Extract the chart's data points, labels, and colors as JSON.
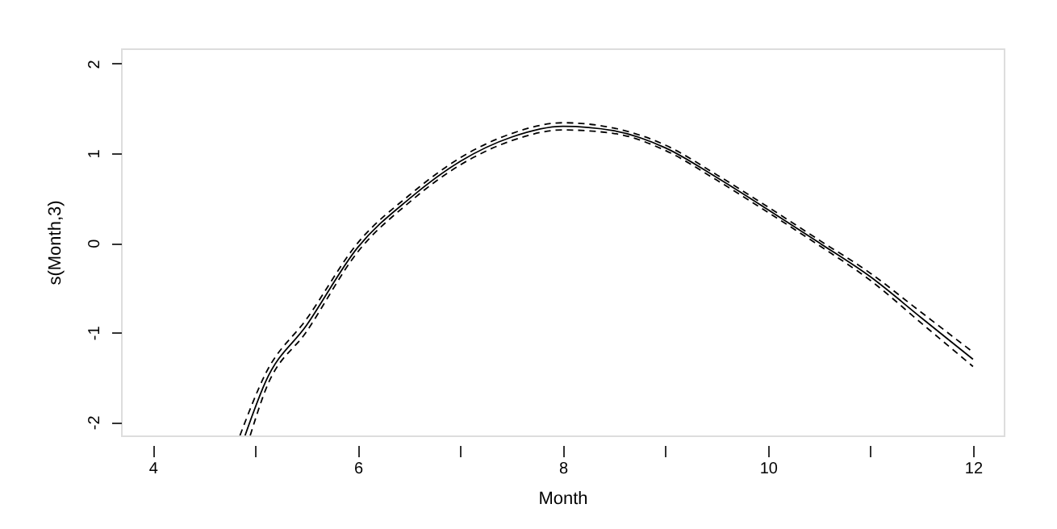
{
  "chart_data": {
    "type": "line",
    "xlabel": "Month",
    "ylabel": "s(Month,3)",
    "xlim": [
      3.69,
      12.3
    ],
    "ylim": [
      -2.15,
      2.17
    ],
    "xticks": [
      4,
      {
        "value": 5,
        "label": null
      },
      6,
      {
        "value": 7,
        "label": null
      },
      8,
      {
        "value": 9,
        "label": null
      },
      10,
      {
        "value": 11,
        "label": null
      },
      12
    ],
    "yticks": [
      -2,
      -1,
      0,
      1,
      2
    ],
    "grid": false,
    "marker": "none",
    "series": [
      {
        "color": "#000000",
        "line_style": "solid",
        "x": [
          4.9,
          5.1,
          5.5,
          6,
          6.5,
          7,
          7.5,
          8,
          8.5,
          9,
          9.5,
          10,
          10.5,
          11,
          11.5,
          12
        ],
        "values": [
          -2.15,
          -1.55,
          -0.92,
          -0.05,
          0.49,
          0.91,
          1.18,
          1.3,
          1.25,
          1.06,
          0.73,
          0.37,
          0.0,
          -0.38,
          -0.84,
          -1.3
        ]
      },
      {
        "color": "#000000",
        "line_style": "dashed",
        "x": [
          4.85,
          5.1,
          5.5,
          6,
          6.5,
          7,
          7.5,
          8,
          8.5,
          9,
          9.5,
          10,
          10.5,
          11,
          11.5,
          12
        ],
        "values": [
          -2.15,
          -1.46,
          -0.85,
          0.0,
          0.53,
          0.95,
          1.22,
          1.34,
          1.28,
          1.09,
          0.76,
          0.4,
          0.03,
          -0.34,
          -0.78,
          -1.22
        ]
      },
      {
        "color": "#000000",
        "line_style": "dashed",
        "x": [
          4.95,
          5.1,
          5.5,
          6,
          6.5,
          7,
          7.5,
          8,
          8.5,
          9,
          9.5,
          10,
          10.5,
          11,
          11.5,
          12
        ],
        "values": [
          -2.15,
          -1.64,
          -0.99,
          -0.1,
          0.45,
          0.87,
          1.14,
          1.26,
          1.22,
          1.03,
          0.7,
          0.34,
          -0.03,
          -0.42,
          -0.9,
          -1.38
        ]
      }
    ]
  }
}
